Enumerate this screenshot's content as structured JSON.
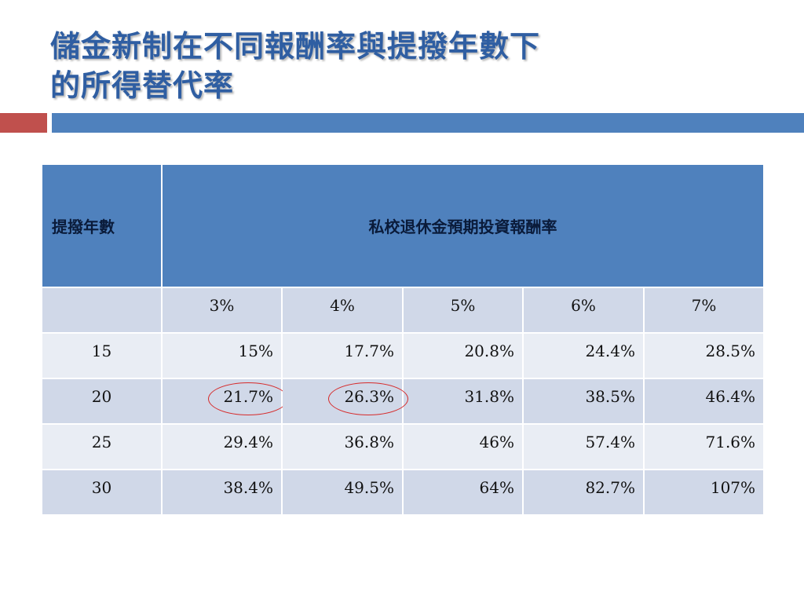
{
  "title": {
    "line1": "儲金新制在不同報酬率與提撥年數下",
    "line2": "的所得替代率"
  },
  "colors": {
    "title": "#2f5ea2",
    "accent_red": "#c0504d",
    "accent_blue": "#4f81bd",
    "header_fill": "#4f81bd",
    "row_band_dark": "#d0d8e8",
    "row_band_light": "#e9edf4",
    "circle_marker": "#d62a2a"
  },
  "table": {
    "col_header_years": "提撥年數",
    "col_header_rates": "私校退休金預期投資報酬率",
    "rates": [
      "3%",
      "4%",
      "5%",
      "6%",
      "7%"
    ],
    "rows": [
      {
        "years": "15",
        "values": [
          "15%",
          "17.7%",
          "20.8%",
          "24.4%",
          "28.5%"
        ]
      },
      {
        "years": "20",
        "values": [
          "21.7%",
          "26.3%",
          "31.8%",
          "38.5%",
          "46.4%"
        ]
      },
      {
        "years": "25",
        "values": [
          "29.4%",
          "36.8%",
          "46%",
          "57.4%",
          "71.6%"
        ]
      },
      {
        "years": "30",
        "values": [
          "38.4%",
          "49.5%",
          "64%",
          "82.7%",
          "107%"
        ]
      }
    ],
    "highlighted_cells": [
      "21.7%",
      "26.3%"
    ]
  }
}
